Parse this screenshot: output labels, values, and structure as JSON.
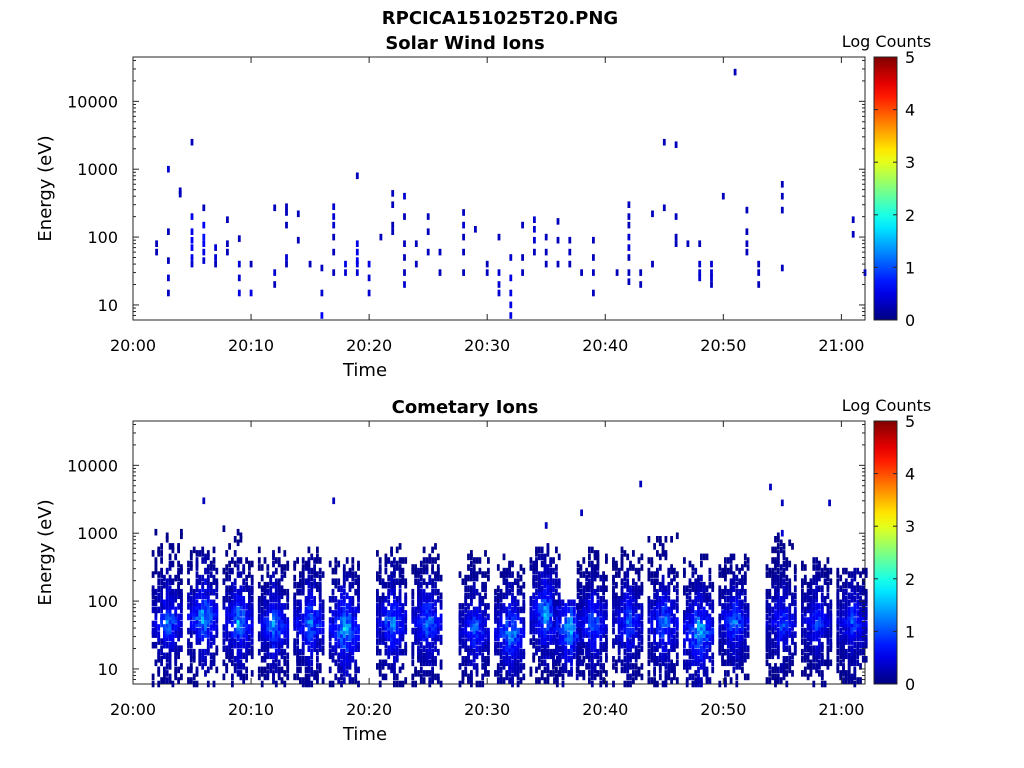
{
  "figure_title": "RPCICA151025T20.PNG",
  "chart_data": [
    {
      "type": "heatmap",
      "title": "Solar Wind Ions",
      "xlabel": "Time",
      "ylabel": "Energy (eV)",
      "x_ticks": [
        "20:00",
        "20:10",
        "20:20",
        "20:30",
        "20:40",
        "20:50",
        "21:00"
      ],
      "y_ticks": [
        "10",
        "100",
        "1000",
        "10000"
      ],
      "y_scale": "log",
      "xlim": [
        "20:00",
        "21:02"
      ],
      "ylim": [
        6,
        45000
      ],
      "colorbar": {
        "title": "Log Counts",
        "ticks": [
          "0",
          "1",
          "2",
          "3",
          "4",
          "5"
        ],
        "range": [
          0,
          5
        ],
        "colormap": "jet"
      },
      "cells": [
        [
          "20:02",
          60,
          0.3
        ],
        [
          "20:02",
          80,
          0.3
        ],
        [
          "20:03",
          1000,
          0.4
        ],
        [
          "20:03",
          45,
          0.3
        ],
        [
          "20:03",
          25,
          0.4
        ],
        [
          "20:03",
          15,
          0.3
        ],
        [
          "20:03",
          120,
          0.3
        ],
        [
          "20:04",
          430,
          0.3
        ],
        [
          "20:04",
          480,
          0.3
        ],
        [
          "20:05",
          2500,
          0.3
        ],
        [
          "20:05",
          200,
          0.5
        ],
        [
          "20:05",
          120,
          0.5
        ],
        [
          "20:05",
          90,
          0.6
        ],
        [
          "20:05",
          70,
          0.6
        ],
        [
          "20:05",
          50,
          0.5
        ],
        [
          "20:05",
          40,
          0.4
        ],
        [
          "20:06",
          150,
          0.6
        ],
        [
          "20:06",
          100,
          0.7
        ],
        [
          "20:06",
          80,
          0.6
        ],
        [
          "20:06",
          60,
          0.5
        ],
        [
          "20:06",
          45,
          0.4
        ],
        [
          "20:06",
          270,
          0.3
        ],
        [
          "20:07",
          70,
          0.4
        ],
        [
          "20:07",
          50,
          0.4
        ],
        [
          "20:07",
          40,
          0.3
        ],
        [
          "20:08",
          80,
          0.3
        ],
        [
          "20:08",
          180,
          0.3
        ],
        [
          "20:08",
          60,
          0.3
        ],
        [
          "20:09",
          40,
          0.4
        ],
        [
          "20:09",
          25,
          0.4
        ],
        [
          "20:09",
          15,
          0.5
        ],
        [
          "20:09",
          95,
          0.3
        ],
        [
          "20:10",
          15,
          0.5
        ],
        [
          "20:10",
          40,
          0.3
        ],
        [
          "20:12",
          270,
          0.3
        ],
        [
          "20:12",
          30,
          0.4
        ],
        [
          "20:12",
          20,
          0.3
        ],
        [
          "20:13",
          230,
          0.3
        ],
        [
          "20:13",
          150,
          0.3
        ],
        [
          "20:13",
          50,
          0.4
        ],
        [
          "20:13",
          40,
          0.3
        ],
        [
          "20:13",
          280,
          0.3
        ],
        [
          "20:14",
          90,
          0.3
        ],
        [
          "20:14",
          220,
          0.3
        ],
        [
          "20:15",
          40,
          0.3
        ],
        [
          "20:16",
          35,
          0.3
        ],
        [
          "20:16",
          15,
          0.4
        ],
        [
          "20:16",
          7,
          0.6
        ],
        [
          "20:17",
          280,
          0.4
        ],
        [
          "20:17",
          200,
          0.4
        ],
        [
          "20:17",
          150,
          0.4
        ],
        [
          "20:17",
          100,
          0.3
        ],
        [
          "20:17",
          60,
          0.3
        ],
        [
          "20:17",
          30,
          0.3
        ],
        [
          "20:18",
          40,
          0.5
        ],
        [
          "20:18",
          30,
          0.4
        ],
        [
          "20:19",
          80,
          0.5
        ],
        [
          "20:19",
          60,
          0.5
        ],
        [
          "20:19",
          45,
          0.6
        ],
        [
          "20:19",
          40,
          0.5
        ],
        [
          "20:19",
          30,
          0.4
        ],
        [
          "20:19",
          800,
          0.3
        ],
        [
          "20:20",
          40,
          0.5
        ],
        [
          "20:20",
          25,
          0.4
        ],
        [
          "20:20",
          15,
          0.4
        ],
        [
          "20:21",
          100,
          0.3
        ],
        [
          "20:22",
          440,
          0.3
        ],
        [
          "20:22",
          300,
          0.3
        ],
        [
          "20:22",
          150,
          0.3
        ],
        [
          "20:22",
          120,
          0.3
        ],
        [
          "20:23",
          400,
          0.4
        ],
        [
          "20:23",
          200,
          0.3
        ],
        [
          "20:23",
          80,
          0.3
        ],
        [
          "20:23",
          50,
          0.3
        ],
        [
          "20:23",
          30,
          0.3
        ],
        [
          "20:23",
          20,
          0.4
        ],
        [
          "20:24",
          80,
          0.3
        ],
        [
          "20:24",
          40,
          0.3
        ],
        [
          "20:25",
          200,
          0.3
        ],
        [
          "20:25",
          120,
          0.3
        ],
        [
          "20:25",
          60,
          0.3
        ],
        [
          "20:26",
          60,
          0.3
        ],
        [
          "20:26",
          30,
          0.3
        ],
        [
          "20:28",
          230,
          0.3
        ],
        [
          "20:28",
          150,
          0.4
        ],
        [
          "20:28",
          100,
          0.3
        ],
        [
          "20:28",
          60,
          0.3
        ],
        [
          "20:28",
          30,
          0.3
        ],
        [
          "20:29",
          130,
          0.3
        ],
        [
          "20:30",
          40,
          0.3
        ],
        [
          "20:30",
          30,
          0.3
        ],
        [
          "20:31",
          30,
          0.4
        ],
        [
          "20:31",
          20,
          0.4
        ],
        [
          "20:31",
          15,
          0.4
        ],
        [
          "20:31",
          100,
          0.3
        ],
        [
          "20:32",
          50,
          0.4
        ],
        [
          "20:32",
          25,
          0.5
        ],
        [
          "20:32",
          15,
          0.5
        ],
        [
          "20:32",
          10,
          0.5
        ],
        [
          "20:32",
          7,
          0.5
        ],
        [
          "20:33",
          150,
          0.3
        ],
        [
          "20:33",
          50,
          0.3
        ],
        [
          "20:33",
          30,
          0.3
        ],
        [
          "20:34",
          180,
          0.4
        ],
        [
          "20:34",
          130,
          0.4
        ],
        [
          "20:34",
          90,
          0.4
        ],
        [
          "20:34",
          60,
          0.3
        ],
        [
          "20:35",
          100,
          0.3
        ],
        [
          "20:35",
          60,
          0.3
        ],
        [
          "20:35",
          40,
          0.3
        ],
        [
          "20:36",
          170,
          0.3
        ],
        [
          "20:36",
          90,
          0.3
        ],
        [
          "20:36",
          40,
          0.3
        ],
        [
          "20:37",
          90,
          0.3
        ],
        [
          "20:37",
          60,
          0.3
        ],
        [
          "20:37",
          40,
          0.3
        ],
        [
          "20:38",
          30,
          0.3
        ],
        [
          "20:39",
          90,
          0.3
        ],
        [
          "20:39",
          50,
          0.3
        ],
        [
          "20:39",
          30,
          0.3
        ],
        [
          "20:39",
          15,
          0.3
        ],
        [
          "20:41",
          30,
          0.3
        ],
        [
          "20:42",
          300,
          0.3
        ],
        [
          "20:42",
          200,
          0.3
        ],
        [
          "20:42",
          150,
          0.3
        ],
        [
          "20:42",
          100,
          0.4
        ],
        [
          "20:42",
          70,
          0.4
        ],
        [
          "20:42",
          50,
          0.3
        ],
        [
          "20:42",
          30,
          0.3
        ],
        [
          "20:42",
          22,
          0.3
        ],
        [
          "20:43",
          30,
          0.3
        ],
        [
          "20:43",
          20,
          0.3
        ],
        [
          "20:44",
          220,
          0.3
        ],
        [
          "20:44",
          40,
          0.3
        ],
        [
          "20:45",
          2500,
          0.3
        ],
        [
          "20:45",
          270,
          0.3
        ],
        [
          "20:46",
          2300,
          0.3
        ],
        [
          "20:46",
          200,
          0.3
        ],
        [
          "20:46",
          100,
          0.3
        ],
        [
          "20:46",
          80,
          0.3
        ],
        [
          "20:47",
          80,
          0.3
        ],
        [
          "20:48",
          80,
          0.3
        ],
        [
          "20:48",
          40,
          0.4
        ],
        [
          "20:48",
          30,
          0.4
        ],
        [
          "20:48",
          25,
          0.4
        ],
        [
          "20:49",
          40,
          0.4
        ],
        [
          "20:49",
          30,
          0.4
        ],
        [
          "20:49",
          25,
          0.4
        ],
        [
          "20:49",
          20,
          0.3
        ],
        [
          "20:50",
          400,
          0.3
        ],
        [
          "20:51",
          27000,
          0.3
        ],
        [
          "20:52",
          60,
          0.3
        ],
        [
          "20:52",
          80,
          0.3
        ],
        [
          "20:52",
          120,
          0.3
        ],
        [
          "20:52",
          250,
          0.3
        ],
        [
          "20:53",
          40,
          0.3
        ],
        [
          "20:53",
          20,
          0.3
        ],
        [
          "20:53",
          30,
          0.3
        ],
        [
          "20:55",
          600,
          0.3
        ],
        [
          "20:55",
          400,
          0.3
        ],
        [
          "20:55",
          250,
          0.3
        ],
        [
          "20:55",
          35,
          0.3
        ],
        [
          "21:01",
          180,
          0.3
        ],
        [
          "21:01",
          110,
          0.3
        ],
        [
          "21:02",
          30,
          0.3
        ]
      ]
    },
    {
      "type": "heatmap",
      "title": "Cometary Ions",
      "xlabel": "Time",
      "ylabel": "Energy (eV)",
      "x_ticks": [
        "20:00",
        "20:10",
        "20:20",
        "20:30",
        "20:40",
        "20:50",
        "21:00"
      ],
      "y_ticks": [
        "10",
        "100",
        "1000",
        "10000"
      ],
      "y_scale": "log",
      "xlim": [
        "20:00",
        "21:02"
      ],
      "ylim": [
        6,
        45000
      ],
      "colorbar": {
        "title": "Log Counts",
        "ticks": [
          "0",
          "1",
          "2",
          "3",
          "4",
          "5"
        ],
        "range": [
          0,
          5
        ],
        "colormap": "jet"
      },
      "points": [
        [
          "20:06",
          3000,
          0.3
        ],
        [
          "20:17",
          3000,
          0.3
        ],
        [
          "20:38",
          2000,
          0.3
        ],
        [
          "20:43",
          5300,
          0.3
        ],
        [
          "20:54",
          4800,
          0.3
        ],
        [
          "20:55",
          2800,
          0.3
        ],
        [
          "20:59",
          2800,
          0.3
        ],
        [
          "20:35",
          1300,
          0.3
        ],
        [
          "20:55",
          1000,
          0.4
        ]
      ],
      "bursts": [
        {
          "center": "20:03",
          "peak_energy": 50,
          "peak_log_counts": 1.5,
          "max_energy": 1100
        },
        {
          "center": "20:06",
          "peak_energy": 60,
          "peak_log_counts": 1.9,
          "max_energy": 600
        },
        {
          "center": "20:09",
          "peak_energy": 50,
          "peak_log_counts": 1.8,
          "max_energy": 1400
        },
        {
          "center": "20:12",
          "peak_energy": 45,
          "peak_log_counts": 1.6,
          "max_energy": 600
        },
        {
          "center": "20:15",
          "peak_energy": 50,
          "peak_log_counts": 1.7,
          "max_energy": 600
        },
        {
          "center": "20:18",
          "peak_energy": 40,
          "peak_log_counts": 2.1,
          "max_energy": 400
        },
        {
          "center": "20:22",
          "peak_energy": 50,
          "peak_log_counts": 1.7,
          "max_energy": 800
        },
        {
          "center": "20:25",
          "peak_energy": 50,
          "peak_log_counts": 1.6,
          "max_energy": 700
        },
        {
          "center": "20:29",
          "peak_energy": 40,
          "peak_log_counts": 1.4,
          "max_energy": 600
        },
        {
          "center": "20:32",
          "peak_energy": 35,
          "peak_log_counts": 1.8,
          "max_energy": 500
        },
        {
          "center": "20:35",
          "peak_energy": 70,
          "peak_log_counts": 1.9,
          "max_energy": 700
        },
        {
          "center": "20:37",
          "peak_energy": 40,
          "peak_log_counts": 2.0,
          "max_energy": 100
        },
        {
          "center": "20:39",
          "peak_energy": 50,
          "peak_log_counts": 1.5,
          "max_energy": 600
        },
        {
          "center": "20:42",
          "peak_energy": 50,
          "peak_log_counts": 1.4,
          "max_energy": 600
        },
        {
          "center": "20:45",
          "peak_energy": 50,
          "peak_log_counts": 1.6,
          "max_energy": 1000
        },
        {
          "center": "20:48",
          "peak_energy": 35,
          "peak_log_counts": 2.1,
          "max_energy": 500
        },
        {
          "center": "20:51",
          "peak_energy": 50,
          "peak_log_counts": 1.5,
          "max_energy": 500
        },
        {
          "center": "20:55",
          "peak_energy": 50,
          "peak_log_counts": 1.3,
          "max_energy": 1000
        },
        {
          "center": "20:58",
          "peak_energy": 50,
          "peak_log_counts": 1.2,
          "max_energy": 400
        },
        {
          "center": "21:01",
          "peak_energy": 50,
          "peak_log_counts": 1.3,
          "max_energy": 300
        }
      ]
    }
  ]
}
